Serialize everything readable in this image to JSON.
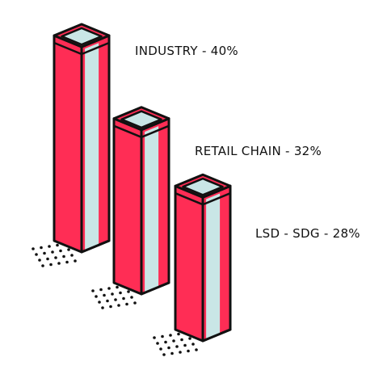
{
  "chart_data": {
    "type": "bar",
    "style": "isometric-3d",
    "categories": [
      "INDUSTRY",
      "RETAIL CHAIN",
      "LSD - SDG"
    ],
    "values": [
      40,
      32,
      28
    ],
    "labels": [
      "INDUSTRY - 40%",
      "RETAIL CHAIN - 32%",
      "LSD - SDG - 28%"
    ],
    "unit": "%",
    "title": "",
    "xlabel": "",
    "ylabel": "",
    "colors": {
      "front": "#FF2D55",
      "side": "#C9E6E6",
      "top": "#C9E6E6",
      "outline": "#111111",
      "dots": "#111111"
    }
  }
}
